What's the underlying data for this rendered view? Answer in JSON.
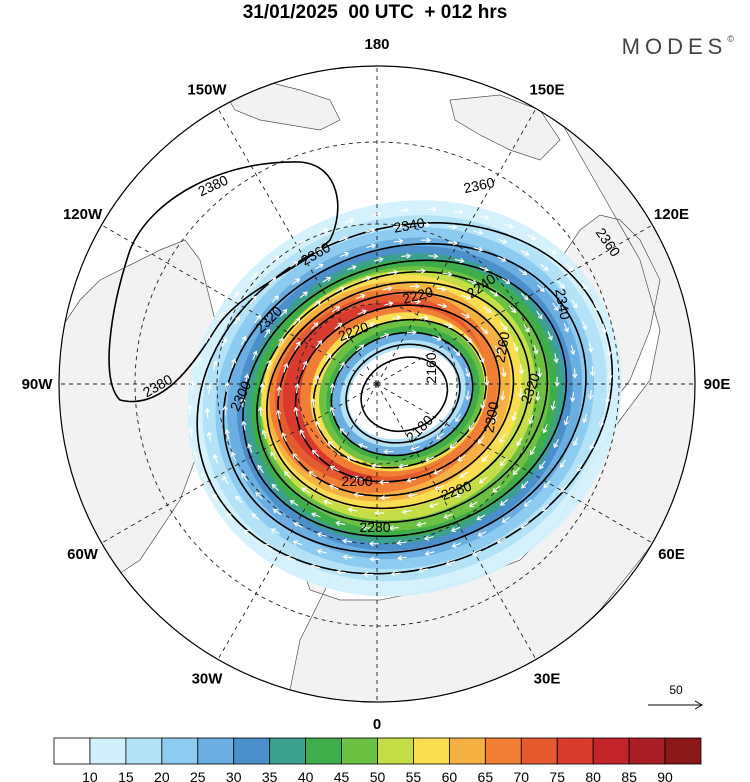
{
  "header": {
    "title": "31/01/2025  00 UTC  + 012 hrs",
    "brand": "MODES",
    "brand_mark": "©"
  },
  "map": {
    "projection": "polar stereographic (north pole)",
    "longitude_labels": [
      {
        "text": "180",
        "lon": 180
      },
      {
        "text": "150E",
        "lon": 150
      },
      {
        "text": "120E",
        "lon": 120
      },
      {
        "text": "90E",
        "lon": 90
      },
      {
        "text": "60E",
        "lon": 60
      },
      {
        "text": "30E",
        "lon": 30
      },
      {
        "text": "0",
        "lon": 0
      },
      {
        "text": "30W",
        "lon": -30
      },
      {
        "text": "60W",
        "lon": -60
      },
      {
        "text": "90W",
        "lon": -90
      },
      {
        "text": "120W",
        "lon": -120
      },
      {
        "text": "150W",
        "lon": -150
      }
    ],
    "contour_labels": [
      "2380",
      "2380",
      "2360",
      "2360",
      "2360",
      "2340",
      "2340",
      "2320",
      "2320",
      "2300",
      "2300",
      "2280",
      "2280",
      "2260",
      "2240",
      "2220",
      "2220",
      "2200",
      "2180",
      "2160"
    ],
    "wind_scale": {
      "label": "50"
    },
    "colors": {
      "land": "#f2f2f2",
      "ocean": "#ffffff",
      "coastline": "#555555"
    }
  },
  "colorbar": {
    "ticks": [
      "10",
      "15",
      "20",
      "25",
      "30",
      "35",
      "40",
      "45",
      "50",
      "55",
      "60",
      "65",
      "70",
      "75",
      "80",
      "85",
      "90"
    ],
    "colors": [
      "#ffffff",
      "#d2f0fc",
      "#b4e3f8",
      "#8ecbf0",
      "#6aaee2",
      "#4b8fcb",
      "#3ba08d",
      "#3fae4a",
      "#6cc142",
      "#c5dd46",
      "#f9de52",
      "#f7b142",
      "#f17e34",
      "#e55a2f",
      "#d83a2e",
      "#c2242a",
      "#a91e25",
      "#8b1818"
    ]
  }
}
